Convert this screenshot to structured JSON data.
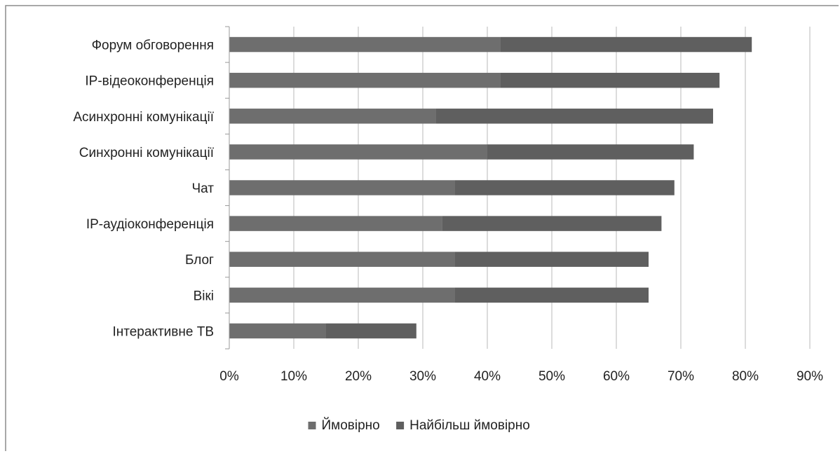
{
  "chart_data": {
    "type": "bar",
    "orientation": "horizontal",
    "stacked": true,
    "categories": [
      "Форум обговорення",
      "IP-відеоконференція",
      "Асинхронні комунікації",
      "Синхронні комунікації",
      "Чат",
      "IP-аудіоконференція",
      "Блог",
      "Вікі",
      "Інтерактивне ТВ"
    ],
    "series": [
      {
        "name": "Ймовірно",
        "values": [
          42,
          42,
          32,
          40,
          35,
          33,
          35,
          35,
          15
        ]
      },
      {
        "name": "Найбільш ймовірно",
        "values": [
          39,
          34,
          43,
          32,
          34,
          34,
          30,
          30,
          14
        ]
      }
    ],
    "xlim": [
      0,
      90
    ],
    "xticks": [
      "0%",
      "10%",
      "20%",
      "30%",
      "40%",
      "50%",
      "60%",
      "70%",
      "80%",
      "90%"
    ],
    "grid": true,
    "legend_position": "bottom",
    "colors": {
      "series1": "#6e6e6e",
      "series2": "#5f5f5f",
      "grid": "#b8b8b8",
      "axis": "#999999",
      "border": "#8c8c8c"
    }
  }
}
